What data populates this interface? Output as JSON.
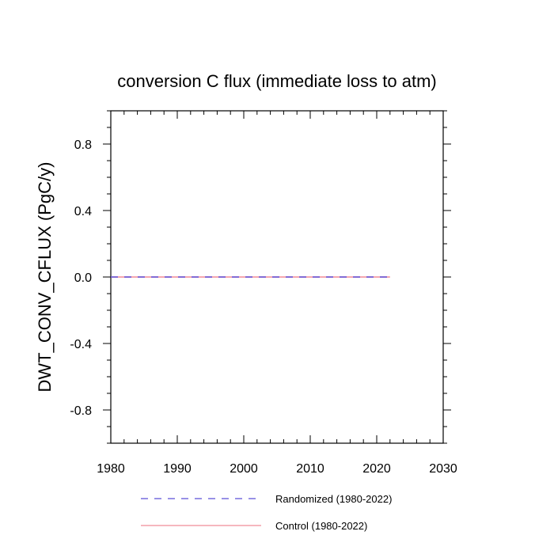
{
  "chart_data": {
    "type": "line",
    "title": "conversion C flux (immediate loss to atm)",
    "xlabel": "",
    "ylabel": "DWT_CONV_CFLUX  (PgC/y)",
    "xlim": [
      1980,
      2030
    ],
    "ylim": [
      -1.0,
      1.0
    ],
    "x_ticks": [
      1980,
      1990,
      2000,
      2010,
      2020,
      2030
    ],
    "x_tick_labels": [
      "1980",
      "1990",
      "2000",
      "2010",
      "2020",
      "2030"
    ],
    "y_ticks": [
      -0.8,
      -0.4,
      0.0,
      0.4,
      0.8
    ],
    "y_tick_labels": [
      "-0.8",
      "-0.4",
      "0.0",
      "0.4",
      "0.8"
    ],
    "x_minor_step": 2,
    "y_minor_step": 0.1,
    "grid": false,
    "legend_position": "bottom",
    "series": [
      {
        "name": "Randomized (1980-2022)",
        "color": "#5b4fd8",
        "dash": "dashed",
        "x": [
          1980,
          2022
        ],
        "y": [
          0.0,
          0.0
        ]
      },
      {
        "name": "Control (1980-2022)",
        "color": "#f08c96",
        "dash": "solid",
        "x": [
          1980,
          2022
        ],
        "y": [
          0.0,
          0.0
        ]
      }
    ]
  }
}
